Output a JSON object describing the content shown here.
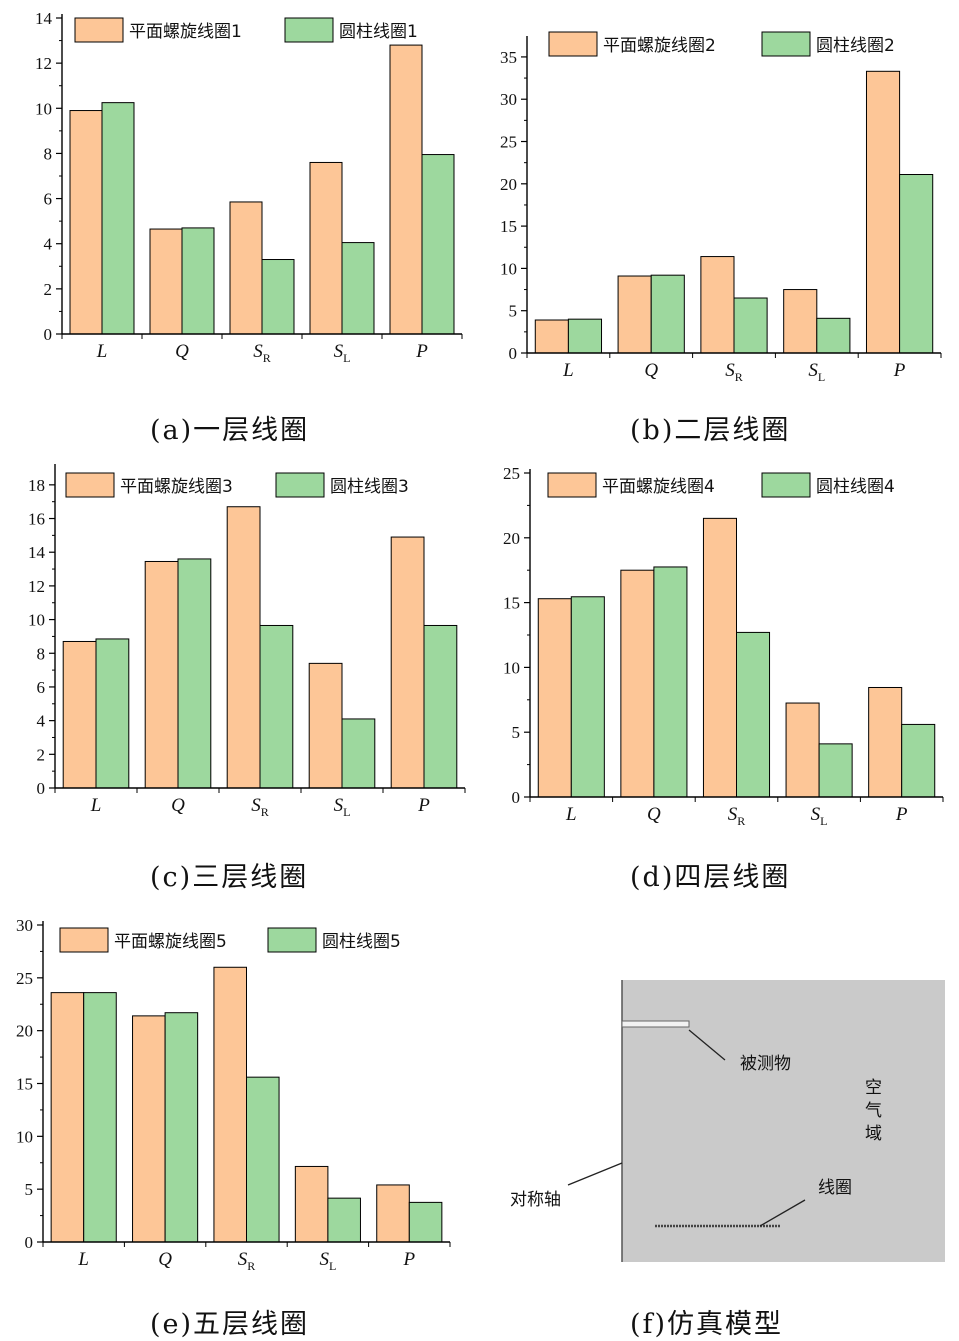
{
  "colors": {
    "planar": "#FDC697",
    "cylindrical": "#9DD89E",
    "axis": "#000000",
    "sim_bg": "#CACACA"
  },
  "chart_data": [
    {
      "type": "bar",
      "categories": [
        {
          "main": "L",
          "sub": ""
        },
        {
          "main": "Q",
          "sub": ""
        },
        {
          "main": "S",
          "sub": "R"
        },
        {
          "main": "S",
          "sub": "L"
        },
        {
          "main": "P",
          "sub": ""
        }
      ],
      "series": [
        {
          "name": "平面螺旋线圈1",
          "values": [
            9.9,
            4.65,
            5.85,
            7.6,
            12.8
          ]
        },
        {
          "name": "圆柱线圈1",
          "values": [
            10.25,
            4.7,
            3.3,
            4.05,
            7.95
          ]
        }
      ],
      "ylim": [
        0,
        14
      ],
      "yticks": [
        0,
        2,
        4,
        6,
        8,
        10,
        12,
        14
      ],
      "xlabel": "",
      "ylabel": "",
      "legend": "top",
      "grid": false
    },
    {
      "type": "bar",
      "categories": [
        {
          "main": "L",
          "sub": ""
        },
        {
          "main": "Q",
          "sub": ""
        },
        {
          "main": "S",
          "sub": "R"
        },
        {
          "main": "S",
          "sub": "L"
        },
        {
          "main": "P",
          "sub": ""
        }
      ],
      "series": [
        {
          "name": "平面螺旋线圈2",
          "values": [
            3.9,
            9.1,
            11.4,
            7.5,
            33.3
          ]
        },
        {
          "name": "圆柱线圈2",
          "values": [
            4.0,
            9.2,
            6.5,
            4.1,
            21.1
          ]
        }
      ],
      "ylim": [
        0,
        37
      ],
      "yticks": [
        0,
        5,
        10,
        15,
        20,
        25,
        30,
        35
      ],
      "xlabel": "",
      "ylabel": "",
      "legend": "top",
      "grid": false
    },
    {
      "type": "bar",
      "categories": [
        {
          "main": "L",
          "sub": ""
        },
        {
          "main": "Q",
          "sub": ""
        },
        {
          "main": "S",
          "sub": "R"
        },
        {
          "main": "S",
          "sub": "L"
        },
        {
          "main": "P",
          "sub": ""
        }
      ],
      "series": [
        {
          "name": "平面螺旋线圈3",
          "values": [
            8.7,
            13.45,
            16.7,
            7.4,
            14.9
          ]
        },
        {
          "name": "圆柱线圈3",
          "values": [
            8.85,
            13.6,
            9.65,
            4.1,
            9.65
          ]
        }
      ],
      "ylim": [
        0,
        19
      ],
      "yticks": [
        0,
        2,
        4,
        6,
        8,
        10,
        12,
        14,
        16,
        18
      ],
      "xlabel": "",
      "ylabel": "",
      "legend": "top",
      "grid": false
    },
    {
      "type": "bar",
      "categories": [
        {
          "main": "L",
          "sub": ""
        },
        {
          "main": "Q",
          "sub": ""
        },
        {
          "main": "S",
          "sub": "R"
        },
        {
          "main": "S",
          "sub": "L"
        },
        {
          "main": "P",
          "sub": ""
        }
      ],
      "series": [
        {
          "name": "平面螺旋线圈4",
          "values": [
            15.3,
            17.5,
            21.5,
            7.25,
            8.45
          ]
        },
        {
          "name": "圆柱线圈4",
          "values": [
            15.45,
            17.75,
            12.7,
            4.1,
            5.6
          ]
        }
      ],
      "ylim": [
        0,
        25
      ],
      "yticks": [
        0,
        5,
        10,
        15,
        20,
        25
      ],
      "xlabel": "",
      "ylabel": "",
      "legend": "top",
      "grid": false
    },
    {
      "type": "bar",
      "categories": [
        {
          "main": "L",
          "sub": ""
        },
        {
          "main": "Q",
          "sub": ""
        },
        {
          "main": "S",
          "sub": "R"
        },
        {
          "main": "S",
          "sub": "L"
        },
        {
          "main": "P",
          "sub": ""
        }
      ],
      "series": [
        {
          "name": "平面螺旋线圈5",
          "values": [
            23.6,
            21.4,
            26.0,
            7.15,
            5.4
          ]
        },
        {
          "name": "圆柱线圈5",
          "values": [
            23.6,
            21.7,
            15.6,
            4.15,
            3.75
          ]
        }
      ],
      "ylim": [
        0,
        30
      ],
      "yticks": [
        0,
        5,
        10,
        15,
        20,
        25,
        30
      ],
      "xlabel": "",
      "ylabel": "",
      "legend": "top",
      "grid": false
    }
  ],
  "captions": [
    "(a)一层线圈",
    "(b)二层线圈",
    "(c)三层线圈",
    "(d)四层线圈",
    "(e)五层线圈",
    "(f)仿真模型"
  ],
  "simulation": {
    "label_object": "被测物",
    "label_air": [
      "空",
      "气",
      "域"
    ],
    "label_axis": "对称轴",
    "label_coil": "线圈"
  }
}
